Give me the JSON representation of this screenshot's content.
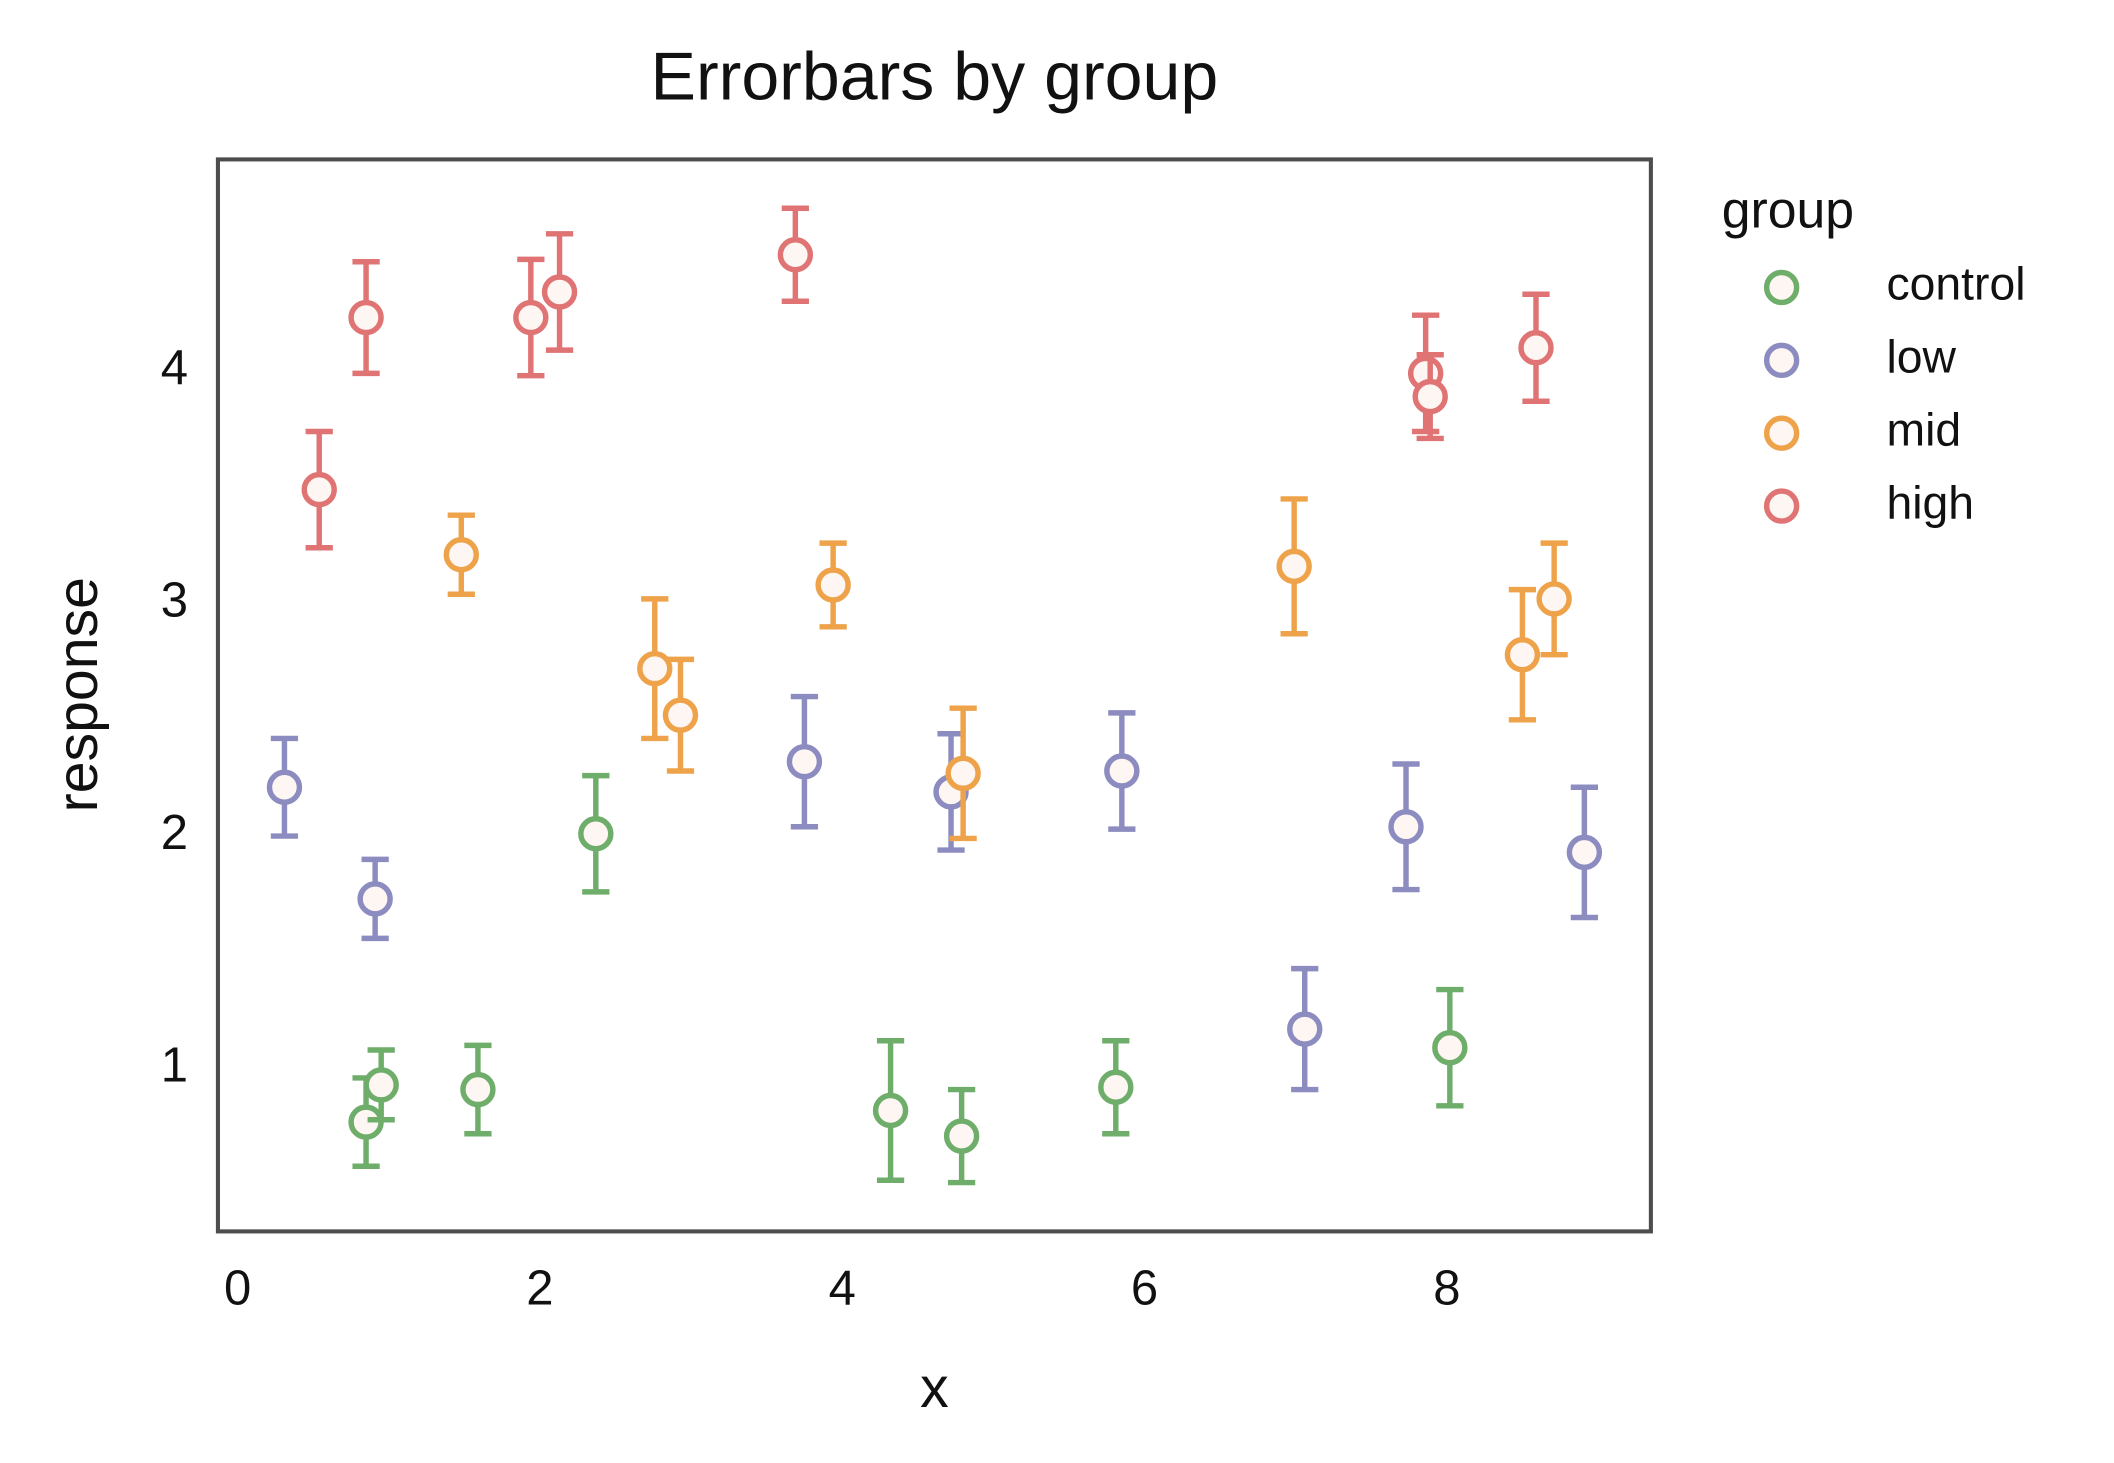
{
  "chart_data": {
    "type": "errorbar",
    "title": "Errorbars by group",
    "x_label": "x",
    "y_label": "response",
    "xlim": [
      -0.13,
      9.35
    ],
    "ylim": [
      0.3,
      4.91
    ],
    "xticks": [
      0,
      2,
      4,
      6,
      8
    ],
    "yticks": [
      1,
      2,
      3,
      4
    ],
    "legend_title": "group",
    "legend_position": "outside-right",
    "series": [
      {
        "name": "control",
        "color": "#6fae6a",
        "x": [
          0.85,
          0.95,
          1.59,
          2.37,
          4.32,
          4.79,
          5.81,
          8.02
        ],
        "values": [
          0.77,
          0.93,
          0.91,
          2.01,
          0.82,
          0.71,
          0.92,
          1.09
        ],
        "errors": [
          0.19,
          0.15,
          0.19,
          0.25,
          0.3,
          0.2,
          0.2,
          0.25
        ]
      },
      {
        "name": "low",
        "color": "#8c8cc0",
        "x": [
          0.31,
          0.91,
          3.75,
          4.72,
          5.85,
          7.06,
          7.73,
          8.91
        ],
        "values": [
          2.21,
          1.73,
          2.32,
          2.19,
          2.28,
          1.17,
          2.04,
          1.93
        ],
        "errors": [
          0.21,
          0.17,
          0.28,
          0.25,
          0.25,
          0.26,
          0.27,
          0.28
        ]
      },
      {
        "name": "mid",
        "color": "#eea34a",
        "x": [
          1.48,
          2.76,
          2.93,
          3.94,
          4.8,
          6.99,
          8.5,
          8.71
        ],
        "values": [
          3.21,
          2.72,
          2.52,
          3.08,
          2.27,
          3.16,
          2.78,
          3.02
        ],
        "errors": [
          0.17,
          0.3,
          0.24,
          0.18,
          0.28,
          0.29,
          0.28,
          0.24
        ]
      },
      {
        "name": "high",
        "color": "#e07474",
        "x": [
          0.54,
          0.85,
          1.94,
          2.13,
          3.69,
          7.86,
          7.89,
          8.59
        ],
        "values": [
          3.49,
          4.23,
          4.23,
          4.34,
          4.5,
          3.99,
          3.89,
          4.1
        ],
        "errors": [
          0.25,
          0.24,
          0.25,
          0.25,
          0.2,
          0.25,
          0.18,
          0.23
        ]
      }
    ]
  }
}
